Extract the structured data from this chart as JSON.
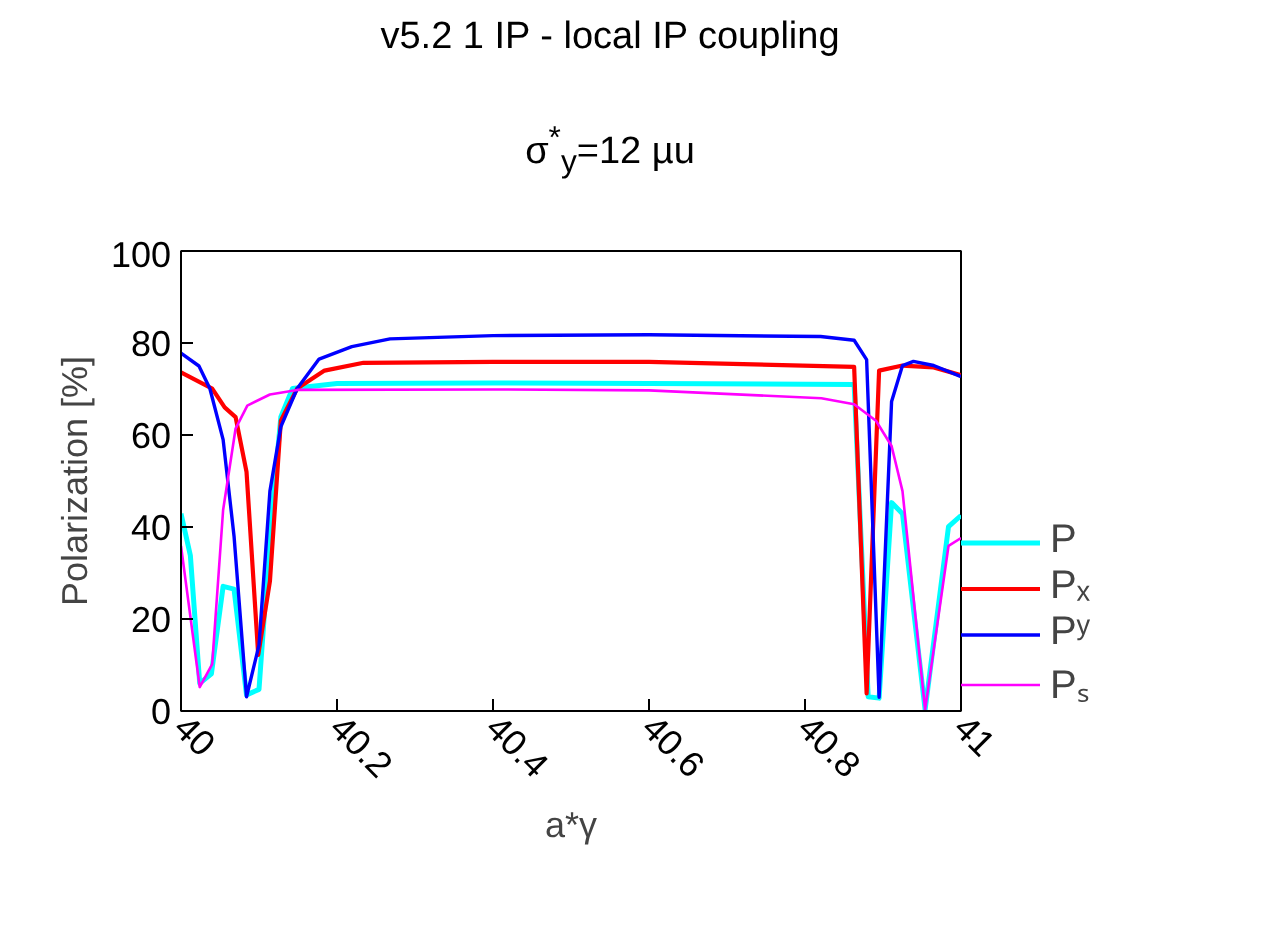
{
  "chart_data": {
    "type": "line",
    "title": "v5.2 1 IP - local IP coupling",
    "subtitle": "σ$^{*}$$_{y}$=12 µu",
    "xlabel": "a*γ",
    "ylabel": "Polarization [%]",
    "xlim": [
      40,
      41
    ],
    "xticks": [
      40,
      40.2,
      40.4,
      40.6,
      40.8,
      41
    ],
    "ylim": [
      0,
      100
    ],
    "yticks": [
      0,
      20,
      40,
      60,
      80,
      100
    ],
    "grid": false,
    "legend": "bottom right",
    "marker": "none",
    "line_style": "solid",
    "series": [
      {
        "name": "P",
        "color": "#00ffff",
        "x": [
          40.0,
          40.012,
          40.024,
          40.039,
          40.054,
          40.068,
          40.084,
          40.1,
          40.114,
          40.128,
          40.143,
          40.2,
          40.4,
          40.6,
          40.863,
          40.881,
          40.895,
          40.911,
          40.925,
          40.954,
          40.984,
          41.0
        ],
        "values": [
          42.9,
          33.8,
          6.0,
          8.1,
          27.1,
          26.5,
          3.5,
          4.7,
          38,
          63.9,
          70.1,
          71.2,
          71.3,
          71.2,
          71,
          3.1,
          2.8,
          45.3,
          42.9,
          0.3,
          40.1,
          42.5
        ]
      },
      {
        "name": "Pₓ",
        "color": "#ff0000",
        "x": [
          40.0,
          40.04,
          40.056,
          40.07,
          40.084,
          40.099,
          40.114,
          40.128,
          40.149,
          40.184,
          40.234,
          40.4,
          40.6,
          40.863,
          40.879,
          40.895,
          40.925,
          40.965,
          41.0
        ],
        "values": [
          73.6,
          70.1,
          66,
          63.9,
          52,
          12.2,
          28.2,
          63.1,
          70.1,
          74,
          75.7,
          75.9,
          75.9,
          74.8,
          3.8,
          74,
          75.1,
          74.7,
          73
        ]
      },
      {
        "name": "Pʸ",
        "color": "#0000ff",
        "x": [
          40.0,
          40.023,
          40.037,
          40.054,
          40.068,
          40.084,
          40.1,
          40.114,
          40.128,
          40.149,
          40.177,
          40.219,
          40.268,
          40.4,
          40.6,
          40.82,
          40.863,
          40.879,
          40.895,
          40.911,
          40.925,
          40.939,
          40.965,
          41.0
        ],
        "values": [
          77.8,
          75,
          70.1,
          59,
          38,
          3.1,
          14.3,
          47.8,
          61.8,
          70.1,
          76.5,
          79.2,
          80.9,
          81.6,
          81.8,
          81.4,
          80.6,
          76.4,
          3,
          67.3,
          75.1,
          76,
          75.1,
          72.7
        ]
      },
      {
        "name": "Pₛ",
        "color": "#ff00ff",
        "x": [
          40.0,
          40.024,
          40.04,
          40.054,
          40.07,
          40.085,
          40.114,
          40.149,
          40.4,
          40.6,
          40.821,
          40.863,
          40.891,
          40.911,
          40.925,
          40.954,
          40.984,
          41.0
        ],
        "values": [
          35.9,
          5.2,
          10.2,
          43.7,
          61.4,
          66.4,
          68.8,
          69.8,
          69.9,
          69.7,
          68,
          66.7,
          63.1,
          57.6,
          47.8,
          0.3,
          35.9,
          37.6
        ]
      }
    ]
  }
}
